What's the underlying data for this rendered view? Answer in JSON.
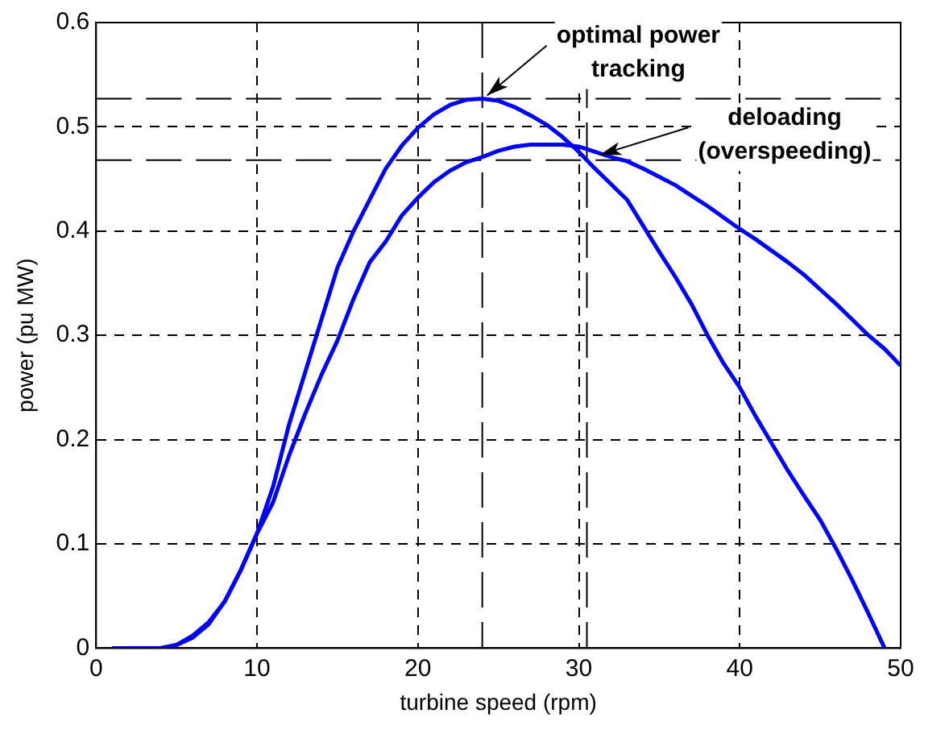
{
  "chart_data": {
    "type": "line",
    "xlabel": "turbine speed (rpm)",
    "ylabel": "power (pu MW)",
    "xlim": [
      0,
      50
    ],
    "xticks": [
      0,
      10,
      20,
      30,
      40,
      50
    ],
    "ylim": [
      0,
      0.6
    ],
    "yticks": [
      0,
      0.1,
      0.2,
      0.3,
      0.4,
      0.5,
      0.6
    ],
    "grid": true,
    "legend": false,
    "marker": "none",
    "line_style": "solid",
    "series": [
      {
        "color": "#0000ff",
        "x": [
          1,
          2,
          3,
          4,
          5,
          6,
          7,
          8,
          9,
          10,
          11,
          12,
          13,
          14,
          15,
          16,
          17,
          18,
          19,
          20,
          21,
          22,
          23,
          24,
          25,
          26,
          27,
          28,
          29,
          30,
          31,
          32,
          33,
          34,
          35,
          36,
          37,
          38,
          39,
          40,
          41,
          42,
          43,
          44,
          45,
          46,
          47,
          48,
          49
        ],
        "values": [
          0,
          0,
          0,
          0,
          0.003,
          0.01,
          0.023,
          0.045,
          0.075,
          0.11,
          0.155,
          0.215,
          0.265,
          0.315,
          0.365,
          0.4,
          0.43,
          0.46,
          0.482,
          0.499,
          0.512,
          0.521,
          0.526,
          0.527,
          0.525,
          0.519,
          0.511,
          0.502,
          0.49,
          0.476,
          0.46,
          0.445,
          0.43,
          0.405,
          0.38,
          0.356,
          0.33,
          0.3,
          0.273,
          0.25,
          0.222,
          0.196,
          0.17,
          0.146,
          0.123,
          0.095,
          0.065,
          0.033,
          0
        ]
      },
      {
        "color": "#0000ff",
        "x": [
          1,
          2,
          3,
          4,
          5,
          6,
          7,
          8,
          9,
          10,
          11,
          12,
          13,
          14,
          15,
          16,
          17,
          18,
          19,
          20,
          21,
          22,
          23,
          24,
          25,
          26,
          27,
          28,
          29,
          30,
          31,
          32,
          33,
          34,
          35,
          36,
          37,
          38,
          39,
          40,
          41,
          42,
          43,
          44,
          45,
          46,
          47,
          48,
          49,
          50
        ],
        "values": [
          0,
          0,
          0,
          0,
          0.003,
          0.012,
          0.025,
          0.045,
          0.075,
          0.11,
          0.14,
          0.185,
          0.225,
          0.262,
          0.295,
          0.335,
          0.37,
          0.39,
          0.415,
          0.432,
          0.447,
          0.458,
          0.466,
          0.471,
          0.477,
          0.481,
          0.483,
          0.483,
          0.483,
          0.481,
          0.476,
          0.471,
          0.467,
          0.46,
          0.452,
          0.444,
          0.434,
          0.424,
          0.413,
          0.402,
          0.392,
          0.381,
          0.37,
          0.358,
          0.344,
          0.33,
          0.315,
          0.3,
          0.287,
          0.271
        ]
      }
    ],
    "ref_lines": [
      {
        "axis": "y",
        "value": 0.527,
        "label": null,
        "color": "#000000",
        "line_style": "dashed"
      },
      {
        "axis": "y",
        "value": 0.468,
        "label": null,
        "color": "#000000",
        "line_style": "dashed"
      },
      {
        "axis": "x",
        "value": 24,
        "label": null,
        "color": "#000000",
        "line_style": "dashed"
      },
      {
        "axis": "x",
        "value": 30.5,
        "label": null,
        "color": "#000000",
        "line_style": "dashed"
      }
    ],
    "annotations": [
      {
        "text": "optimal power\ntracking",
        "x": 24,
        "y": 0.527
      },
      {
        "text": "deloading\n(overspeeding)",
        "x": 31,
        "y": 0.47
      }
    ]
  }
}
